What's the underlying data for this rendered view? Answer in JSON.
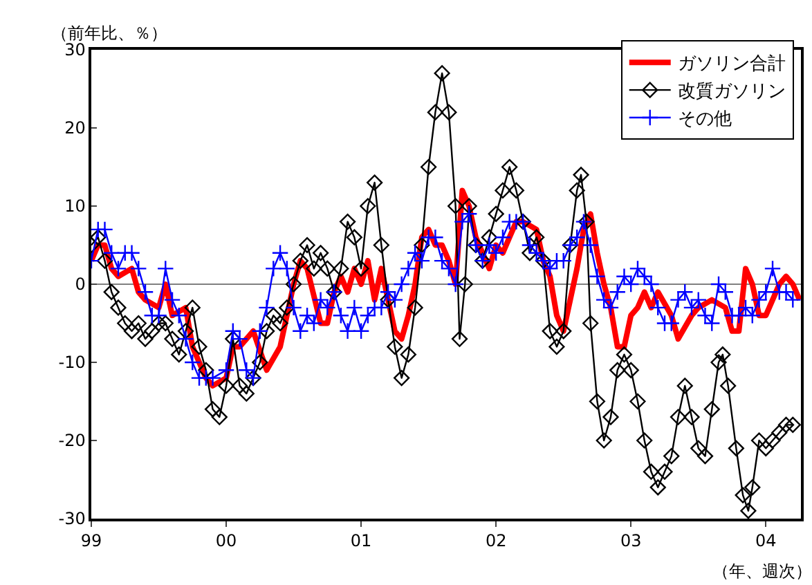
{
  "chart_data": {
    "type": "line",
    "ylabel": "（前年比、％）",
    "xlabel": "（年、週次）",
    "xlim": [
      1999.0,
      2004.26
    ],
    "xticks": [
      {
        "value": 1999,
        "label": "99"
      },
      {
        "value": 2000,
        "label": "00"
      },
      {
        "value": 2001,
        "label": "01"
      },
      {
        "value": 2002,
        "label": "02"
      },
      {
        "value": 2003,
        "label": "03"
      },
      {
        "value": 2004,
        "label": "04"
      }
    ],
    "ylim": [
      -30,
      30
    ],
    "yticks": [
      -30,
      -20,
      -10,
      0,
      10,
      20,
      30
    ],
    "grid": false,
    "legend": "top right",
    "ref_lines": [
      {
        "axis": "y",
        "value": 0,
        "color": "#808080"
      }
    ],
    "series": [
      {
        "name": "ガソリン合計",
        "color": "#ff0000",
        "marker": "none",
        "x": [
          1999.0,
          1999.05,
          1999.1,
          1999.15,
          1999.2,
          1999.3,
          1999.35,
          1999.4,
          1999.5,
          1999.55,
          1999.6,
          1999.7,
          1999.75,
          1999.85,
          1999.9,
          2000.0,
          2000.05,
          2000.1,
          2000.2,
          2000.3,
          2000.4,
          2000.5,
          2000.55,
          2000.6,
          2000.7,
          2000.75,
          2000.8,
          2000.85,
          2000.9,
          2000.95,
          2001.0,
          2001.05,
          2001.1,
          2001.15,
          2001.2,
          2001.25,
          2001.3,
          2001.35,
          2001.4,
          2001.45,
          2001.5,
          2001.55,
          2001.6,
          2001.65,
          2001.7,
          2001.75,
          2001.8,
          2001.85,
          2001.9,
          2001.95,
          2002.0,
          2002.05,
          2002.1,
          2002.15,
          2002.2,
          2002.3,
          2002.35,
          2002.4,
          2002.45,
          2002.5,
          2002.55,
          2002.6,
          2002.65,
          2002.7,
          2002.75,
          2002.8,
          2002.85,
          2002.9,
          2002.95,
          2003.0,
          2003.05,
          2003.1,
          2003.15,
          2003.2,
          2003.3,
          2003.35,
          2003.45,
          2003.5,
          2003.6,
          2003.7,
          2003.75,
          2003.8,
          2003.85,
          2003.9,
          2003.95,
          2004.0,
          2004.05,
          2004.1,
          2004.15,
          2004.2,
          2004.25
        ],
        "values": [
          3,
          5,
          5,
          2,
          1,
          2,
          -1,
          -2,
          -3,
          0,
          -4,
          -3,
          -8,
          -12,
          -13,
          -12,
          -8,
          -8,
          -6,
          -11,
          -8,
          0,
          3,
          2,
          -5,
          -5,
          -1,
          1,
          -1,
          2,
          0,
          3,
          -2,
          2,
          -2,
          -6,
          -7,
          -4,
          0,
          6,
          7,
          5,
          5,
          3,
          0,
          12,
          10,
          6,
          4,
          2,
          5,
          4,
          6,
          8,
          8,
          7,
          3,
          1,
          -4,
          -6,
          -2,
          2,
          7,
          9,
          4,
          0,
          -3,
          -8,
          -8,
          -4,
          -3,
          -1,
          -3,
          -1,
          -4,
          -7,
          -4,
          -3,
          -2,
          -3,
          -6,
          -6,
          2,
          0,
          -4,
          -4,
          -2,
          0,
          1,
          0,
          -2
        ]
      },
      {
        "name": "改質ガソリン",
        "color": "#000000",
        "marker": "diamond",
        "x": [
          1999.0,
          1999.05,
          1999.1,
          1999.15,
          1999.2,
          1999.25,
          1999.3,
          1999.35,
          1999.4,
          1999.45,
          1999.5,
          1999.55,
          1999.6,
          1999.65,
          1999.7,
          1999.75,
          1999.8,
          1999.85,
          1999.9,
          1999.95,
          2000.0,
          2000.05,
          2000.1,
          2000.15,
          2000.2,
          2000.25,
          2000.3,
          2000.35,
          2000.4,
          2000.45,
          2000.5,
          2000.55,
          2000.6,
          2000.65,
          2000.7,
          2000.75,
          2000.8,
          2000.85,
          2000.9,
          2000.95,
          2001.0,
          2001.05,
          2001.1,
          2001.15,
          2001.2,
          2001.25,
          2001.3,
          2001.35,
          2001.4,
          2001.45,
          2001.5,
          2001.55,
          2001.6,
          2001.65,
          2001.7,
          2001.73,
          2001.77,
          2001.8,
          2001.85,
          2001.9,
          2001.95,
          2002.0,
          2002.05,
          2002.1,
          2002.15,
          2002.2,
          2002.25,
          2002.3,
          2002.35,
          2002.4,
          2002.45,
          2002.5,
          2002.55,
          2002.6,
          2002.63,
          2002.67,
          2002.7,
          2002.75,
          2002.8,
          2002.85,
          2002.9,
          2002.95,
          2003.0,
          2003.05,
          2003.1,
          2003.15,
          2003.2,
          2003.25,
          2003.3,
          2003.35,
          2003.4,
          2003.45,
          2003.5,
          2003.55,
          2003.6,
          2003.65,
          2003.68,
          2003.72,
          2003.78,
          2003.83,
          2003.87,
          2003.9,
          2003.95,
          2004.0,
          2004.05,
          2004.1,
          2004.15,
          2004.2
        ],
        "values": [
          5,
          6,
          3,
          -1,
          -3,
          -5,
          -6,
          -5,
          -7,
          -6,
          -5,
          -5,
          -7,
          -9,
          -6,
          -3,
          -8,
          -11,
          -16,
          -17,
          -13,
          -7,
          -13,
          -14,
          -12,
          -10,
          -6,
          -4,
          -5,
          -3,
          0,
          3,
          5,
          2,
          4,
          2,
          -1,
          2,
          8,
          6,
          2,
          10,
          13,
          5,
          -2,
          -8,
          -12,
          -9,
          -3,
          5,
          15,
          22,
          27,
          22,
          10,
          -7,
          0,
          10,
          5,
          3,
          6,
          9,
          12,
          15,
          12,
          8,
          4,
          6,
          3,
          -6,
          -8,
          -6,
          5,
          12,
          14,
          8,
          -5,
          -15,
          -20,
          -17,
          -11,
          -9,
          -11,
          -15,
          -20,
          -24,
          -26,
          -24,
          -22,
          -17,
          -13,
          -17,
          -21,
          -22,
          -16,
          -10,
          -9,
          -13,
          -21,
          -27,
          -29,
          -26,
          -20,
          -21,
          -20,
          -19,
          -18,
          -18
        ]
      },
      {
        "name": "その他",
        "color": "#0000ff",
        "marker": "cross",
        "x": [
          1999.0,
          1999.05,
          1999.1,
          1999.15,
          1999.2,
          1999.25,
          1999.3,
          1999.35,
          1999.4,
          1999.45,
          1999.5,
          1999.55,
          1999.6,
          1999.65,
          1999.7,
          1999.75,
          1999.8,
          1999.85,
          1999.9,
          2000.0,
          2000.05,
          2000.1,
          2000.15,
          2000.2,
          2000.25,
          2000.3,
          2000.35,
          2000.4,
          2000.45,
          2000.5,
          2000.55,
          2000.6,
          2000.65,
          2000.7,
          2000.75,
          2000.8,
          2000.85,
          2000.9,
          2000.95,
          2001.0,
          2001.05,
          2001.1,
          2001.15,
          2001.2,
          2001.25,
          2001.3,
          2001.35,
          2001.4,
          2001.45,
          2001.5,
          2001.55,
          2001.6,
          2001.65,
          2001.7,
          2001.75,
          2001.8,
          2001.85,
          2001.9,
          2001.95,
          2002.0,
          2002.05,
          2002.1,
          2002.15,
          2002.2,
          2002.25,
          2002.3,
          2002.35,
          2002.4,
          2002.45,
          2002.5,
          2002.55,
          2002.6,
          2002.65,
          2002.7,
          2002.75,
          2002.8,
          2002.85,
          2002.9,
          2002.95,
          2003.0,
          2003.05,
          2003.1,
          2003.15,
          2003.2,
          2003.25,
          2003.3,
          2003.35,
          2003.4,
          2003.45,
          2003.5,
          2003.55,
          2003.6,
          2003.65,
          2003.7,
          2003.75,
          2003.8,
          2003.85,
          2003.9,
          2003.95,
          2004.0,
          2004.05,
          2004.1,
          2004.15,
          2004.2
        ],
        "values": [
          3,
          7,
          7,
          4,
          2,
          4,
          4,
          2,
          -1,
          -4,
          -4,
          2,
          -2,
          -4,
          -7,
          -10,
          -12,
          -12,
          -12,
          -11,
          -6,
          -7,
          -11,
          -12,
          -6,
          -3,
          2,
          4,
          2,
          -3,
          -6,
          -4,
          -5,
          -2,
          -3,
          -1,
          -4,
          -6,
          -3,
          -6,
          -4,
          -3,
          -3,
          -1,
          -2,
          0,
          2,
          4,
          3,
          6,
          6,
          3,
          2,
          0,
          8,
          9,
          5,
          3,
          5,
          4,
          6,
          8,
          8,
          8,
          5,
          4,
          3,
          2,
          3,
          3,
          5,
          6,
          8,
          5,
          1,
          -2,
          -3,
          -1,
          1,
          0,
          2,
          1,
          0,
          -3,
          -5,
          -5,
          -2,
          -1,
          -3,
          -2,
          -4,
          -5,
          0,
          -1,
          -4,
          -4,
          -3,
          -4,
          -2,
          -1,
          2,
          -1,
          -1,
          -2
        ]
      }
    ]
  }
}
